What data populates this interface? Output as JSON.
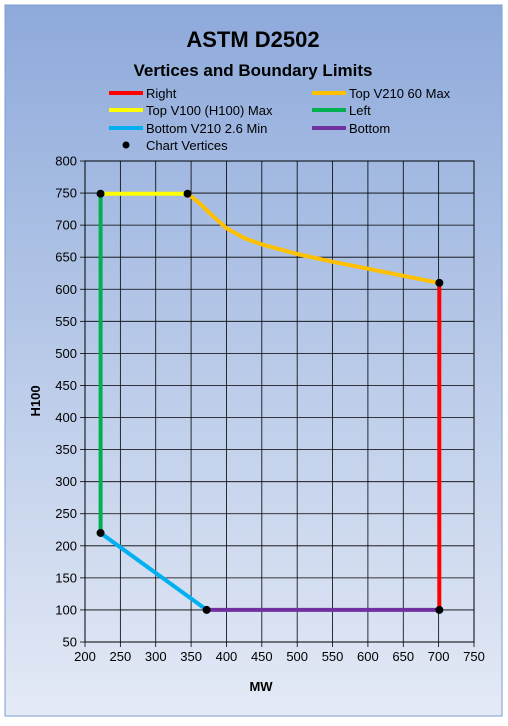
{
  "chart_data": {
    "type": "line",
    "title": "ASTM D2502",
    "subtitle": "Vertices and Boundary Limits",
    "xlabel": "MW",
    "ylabel": "H100",
    "xlim": [
      200,
      750
    ],
    "ylim": [
      50,
      800
    ],
    "xticks": [
      200,
      250,
      300,
      350,
      400,
      450,
      500,
      550,
      600,
      650,
      700,
      750
    ],
    "yticks": [
      50,
      100,
      150,
      200,
      250,
      300,
      350,
      400,
      450,
      500,
      550,
      600,
      650,
      700,
      750,
      800
    ],
    "grid": true,
    "legend_position": "top",
    "series": [
      {
        "name": "Right",
        "color": "#ff0000",
        "points": [
          [
            701,
            100
          ],
          [
            701,
            610
          ]
        ]
      },
      {
        "name": "Top V210 60 Max",
        "color": "#ffc000",
        "points": [
          [
            345,
            749
          ],
          [
            360,
            736
          ],
          [
            380,
            715
          ],
          [
            400,
            695
          ],
          [
            425,
            680
          ],
          [
            450,
            670
          ],
          [
            500,
            655
          ],
          [
            550,
            643
          ],
          [
            600,
            632
          ],
          [
            650,
            621
          ],
          [
            701,
            610
          ]
        ]
      },
      {
        "name": "Top V100 (H100) Max",
        "color": "#ffff00",
        "points": [
          [
            222,
            749
          ],
          [
            345,
            749
          ]
        ]
      },
      {
        "name": "Left",
        "color": "#00b050",
        "points": [
          [
            222,
            220
          ],
          [
            222,
            749
          ]
        ]
      },
      {
        "name": "Bottom V210 2.6 Min",
        "color": "#00b0f0",
        "points": [
          [
            222,
            220
          ],
          [
            372,
            100
          ]
        ]
      },
      {
        "name": "Bottom",
        "color": "#7030a0",
        "points": [
          [
            372,
            100
          ],
          [
            701,
            100
          ]
        ]
      }
    ],
    "vertices": {
      "name": "Chart Vertices",
      "color": "#000000",
      "points": [
        [
          222,
          749
        ],
        [
          345,
          749
        ],
        [
          701,
          610
        ],
        [
          701,
          100
        ],
        [
          372,
          100
        ],
        [
          222,
          220
        ]
      ]
    }
  }
}
